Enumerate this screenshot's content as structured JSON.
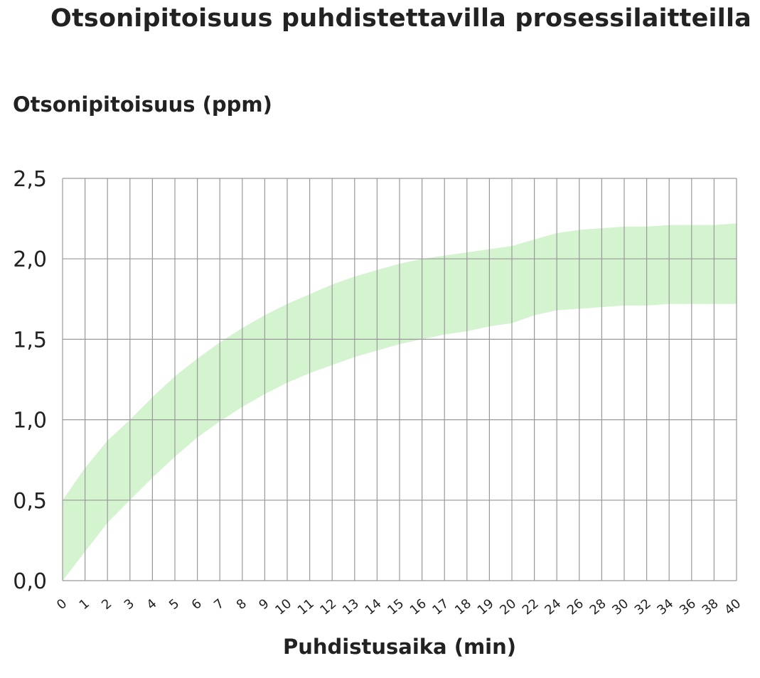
{
  "chart_data": {
    "type": "area",
    "title": "Otsonipitoisuus puhdistettavilla prosessilaitteilla",
    "ylabel": "Otsonipitoisuus (ppm)",
    "xlabel": "Puhdistusaika (min)",
    "categories": [
      "0",
      "1",
      "2",
      "3",
      "4",
      "5",
      "6",
      "7",
      "8",
      "9",
      "10",
      "11",
      "12",
      "13",
      "14",
      "15",
      "16",
      "17",
      "18",
      "19",
      "20",
      "22",
      "24",
      "26",
      "28",
      "30",
      "32",
      "34",
      "36",
      "38",
      "40"
    ],
    "yticks": [
      "0,0",
      "0,5",
      "1,0",
      "1,5",
      "2,0",
      "2,5"
    ],
    "ylim": [
      0,
      2.5
    ],
    "grid": true,
    "series": [
      {
        "lower": [
          0.0,
          0.18,
          0.36,
          0.5,
          0.64,
          0.77,
          0.89,
          0.99,
          1.08,
          1.16,
          1.23,
          1.29,
          1.34,
          1.39,
          1.43,
          1.47,
          1.5,
          1.53,
          1.55,
          1.58,
          1.6,
          1.65,
          1.68,
          1.69,
          1.7,
          1.71,
          1.71,
          1.72,
          1.72,
          1.72,
          1.72
        ],
        "upper": [
          0.5,
          0.7,
          0.87,
          1.0,
          1.14,
          1.27,
          1.38,
          1.48,
          1.57,
          1.65,
          1.72,
          1.78,
          1.84,
          1.89,
          1.93,
          1.97,
          2.0,
          2.02,
          2.04,
          2.06,
          2.08,
          2.12,
          2.16,
          2.18,
          2.19,
          2.2,
          2.2,
          2.21,
          2.21,
          2.21,
          2.22
        ]
      }
    ],
    "colors": {
      "band": "#d4f3cf",
      "grid": "#999999"
    }
  }
}
